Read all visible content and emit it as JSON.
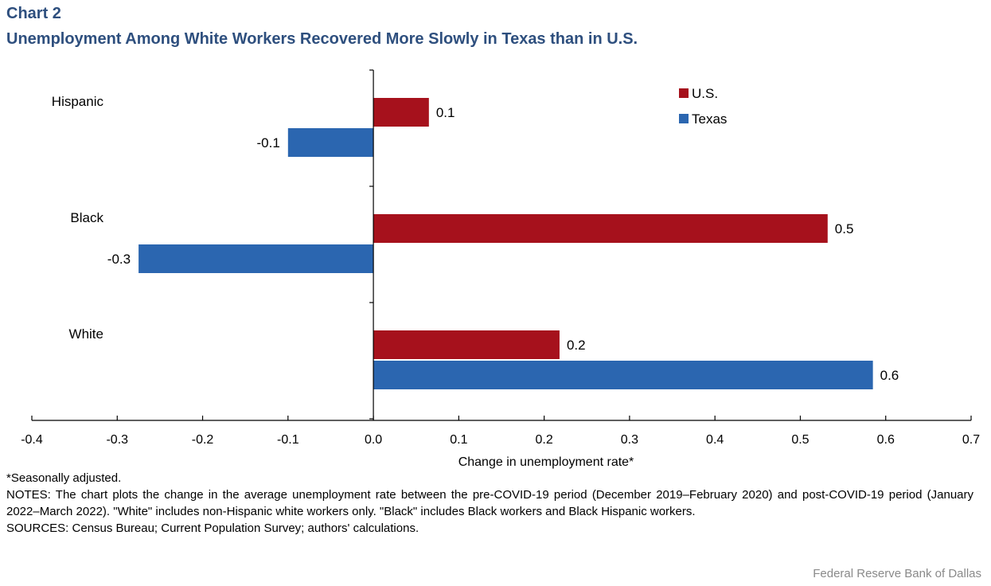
{
  "header": {
    "chart_number": "Chart 2",
    "title": "Unemployment Among White Workers Recovered More Slowly in Texas than in U.S."
  },
  "chart_data": {
    "type": "bar",
    "orientation": "horizontal",
    "categories": [
      "Hispanic",
      "Black",
      "White"
    ],
    "series": [
      {
        "name": "U.S.",
        "color": "#a6111c",
        "values": [
          0.065,
          0.532,
          0.218
        ],
        "labels": [
          "0.1",
          "0.5",
          "0.2"
        ]
      },
      {
        "name": "Texas",
        "color": "#2b66b0",
        "values": [
          -0.1,
          -0.275,
          0.585
        ],
        "labels": [
          "-0.1",
          "-0.3",
          "0.6"
        ]
      }
    ],
    "xlabel": "Change in unemployment rate*",
    "ylabel": "",
    "xlim": [
      -0.4,
      0.7
    ],
    "xticks": [
      "-0.4",
      "-0.3",
      "-0.2",
      "-0.1",
      "0.0",
      "0.1",
      "0.2",
      "0.3",
      "0.4",
      "0.5",
      "0.6",
      "0.7"
    ],
    "grid": false,
    "legend_position": "top-right"
  },
  "notes": {
    "footnote": "*Seasonally adjusted.",
    "notes_text": "NOTES: The chart plots the change in the average unemployment rate between the pre-COVID-19 period (December 2019–February 2020) and post-COVID-19 period (January 2022–March 2022). \"White\" includes non-Hispanic white workers only. \"Black\" includes Black workers and Black Hispanic workers.",
    "sources_text": "SOURCES: Census Bureau; Current Population Survey; authors' calculations."
  },
  "credit": "Federal Reserve Bank of Dallas"
}
